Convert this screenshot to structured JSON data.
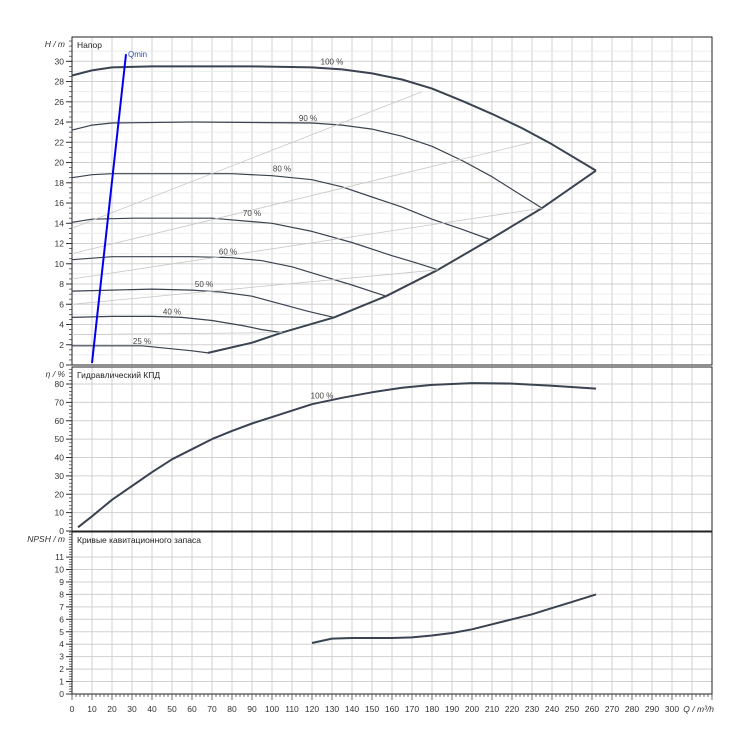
{
  "chart_data": [
    {
      "type": "line",
      "title": "Напор",
      "ylabel": "H / m",
      "xlabel": "Q / m³/h",
      "xlim": [
        0,
        320
      ],
      "ylim": [
        0,
        32
      ],
      "x_ticks": [
        0,
        10,
        20,
        30,
        40,
        50,
        60,
        70,
        80,
        90,
        100,
        110,
        120,
        130,
        140,
        150,
        160,
        170,
        180,
        190,
        200,
        210,
        220,
        230,
        240,
        250,
        260,
        270,
        280,
        290,
        300
      ],
      "y_ticks": [
        0,
        2,
        4,
        6,
        8,
        10,
        12,
        14,
        16,
        18,
        20,
        22,
        24,
        26,
        28,
        30
      ],
      "grid": true,
      "series": [
        {
          "name": "100 %",
          "points": [
            [
              0,
              28.6
            ],
            [
              10,
              29.1
            ],
            [
              20,
              29.4
            ],
            [
              40,
              29.5
            ],
            [
              60,
              29.5
            ],
            [
              90,
              29.5
            ],
            [
              120,
              29.4
            ],
            [
              135,
              29.2
            ],
            [
              150,
              28.8
            ],
            [
              165,
              28.2
            ],
            [
              180,
              27.3
            ],
            [
              195,
              26.1
            ],
            [
              210,
              24.8
            ],
            [
              225,
              23.4
            ],
            [
              240,
              21.8
            ],
            [
              262,
              19.2
            ]
          ]
        },
        {
          "name": "90 %",
          "points": [
            [
              0,
              23.2
            ],
            [
              10,
              23.7
            ],
            [
              20,
              23.9
            ],
            [
              60,
              24.0
            ],
            [
              120,
              23.9
            ],
            [
              135,
              23.7
            ],
            [
              150,
              23.3
            ],
            [
              165,
              22.6
            ],
            [
              180,
              21.6
            ],
            [
              195,
              20.2
            ],
            [
              210,
              18.6
            ],
            [
              222,
              17.1
            ],
            [
              235,
              15.5
            ]
          ]
        },
        {
          "name": "80 %",
          "points": [
            [
              0,
              18.5
            ],
            [
              10,
              18.8
            ],
            [
              20,
              18.9
            ],
            [
              80,
              18.9
            ],
            [
              100,
              18.7
            ],
            [
              120,
              18.3
            ],
            [
              135,
              17.6
            ],
            [
              150,
              16.6
            ],
            [
              165,
              15.6
            ],
            [
              180,
              14.4
            ],
            [
              195,
              13.4
            ],
            [
              209,
              12.4
            ]
          ]
        },
        {
          "name": "70 %",
          "points": [
            [
              0,
              14.1
            ],
            [
              10,
              14.4
            ],
            [
              30,
              14.5
            ],
            [
              70,
              14.5
            ],
            [
              100,
              14.0
            ],
            [
              120,
              13.2
            ],
            [
              140,
              12.1
            ],
            [
              160,
              10.8
            ],
            [
              172,
              10.1
            ],
            [
              183,
              9.4
            ]
          ]
        },
        {
          "name": "60 %",
          "points": [
            [
              0,
              10.4
            ],
            [
              20,
              10.7
            ],
            [
              60,
              10.7
            ],
            [
              80,
              10.6
            ],
            [
              95,
              10.3
            ],
            [
              110,
              9.7
            ],
            [
              125,
              8.8
            ],
            [
              140,
              7.9
            ],
            [
              157,
              6.8
            ]
          ]
        },
        {
          "name": "50 %",
          "points": [
            [
              0,
              7.3
            ],
            [
              20,
              7.4
            ],
            [
              40,
              7.5
            ],
            [
              60,
              7.4
            ],
            [
              75,
              7.2
            ],
            [
              90,
              6.8
            ],
            [
              105,
              6.0
            ],
            [
              118,
              5.3
            ],
            [
              131,
              4.7
            ]
          ]
        },
        {
          "name": "40 %",
          "points": [
            [
              0,
              4.7
            ],
            [
              20,
              4.8
            ],
            [
              40,
              4.8
            ],
            [
              55,
              4.7
            ],
            [
              70,
              4.4
            ],
            [
              85,
              3.9
            ],
            [
              95,
              3.5
            ],
            [
              105,
              3.2
            ]
          ]
        },
        {
          "name": "25 %",
          "points": [
            [
              0,
              1.9
            ],
            [
              20,
              1.9
            ],
            [
              35,
              1.9
            ],
            [
              50,
              1.6
            ],
            [
              60,
              1.4
            ],
            [
              68,
              1.2
            ]
          ]
        },
        {
          "name": "",
          "role": "limit",
          "points": [
            [
              68,
              1.2
            ],
            [
              90,
              2.2
            ],
            [
              105,
              3.2
            ],
            [
              131,
              4.7
            ],
            [
              157,
              6.8
            ],
            [
              183,
              9.4
            ],
            [
              209,
              12.4
            ],
            [
              235,
              15.5
            ],
            [
              262,
              19.2
            ]
          ]
        },
        {
          "name": "",
          "role": "iso-efficiency",
          "points": [
            [
              0,
              13.5
            ],
            [
              175,
              27.0
            ]
          ]
        },
        {
          "name": "",
          "role": "iso-efficiency",
          "points": [
            [
              0,
              11.0
            ],
            [
              230,
              22.0
            ]
          ]
        },
        {
          "name": "",
          "role": "iso-efficiency",
          "points": [
            [
              0,
              8.5
            ],
            [
              235,
              15.5
            ]
          ]
        },
        {
          "name": "",
          "role": "iso-efficiency",
          "points": [
            [
              0,
              6.0
            ],
            [
              183,
              9.4
            ]
          ]
        },
        {
          "name": "",
          "role": "iso-efficiency",
          "points": [
            [
              0,
              3.0
            ],
            [
              105,
              3.2
            ]
          ]
        },
        {
          "name": "Qmin",
          "role": "qmin",
          "color": "#0000ee",
          "points": [
            [
              10,
              0.2
            ],
            [
              27,
              30.7
            ]
          ]
        }
      ]
    },
    {
      "type": "line",
      "title": "Гидравлический КПД",
      "ylabel": "η / %",
      "xlim": [
        0,
        320
      ],
      "ylim": [
        0,
        85
      ],
      "y_ticks": [
        0,
        10,
        20,
        30,
        40,
        50,
        60,
        70,
        80
      ],
      "grid": true,
      "series": [
        {
          "name": "100 %",
          "points": [
            [
              3,
              2
            ],
            [
              10,
              8
            ],
            [
              20,
              17
            ],
            [
              30,
              24.5
            ],
            [
              40,
              32
            ],
            [
              50,
              39
            ],
            [
              60,
              44.5
            ],
            [
              70,
              50
            ],
            [
              80,
              54.5
            ],
            [
              90,
              58.5
            ],
            [
              100,
              62
            ],
            [
              120,
              69
            ],
            [
              135,
              72.5
            ],
            [
              150,
              75.5
            ],
            [
              165,
              78
            ],
            [
              180,
              79.5
            ],
            [
              200,
              80.5
            ],
            [
              220,
              80.2
            ],
            [
              240,
              79
            ],
            [
              262,
              77.5
            ]
          ]
        }
      ]
    },
    {
      "type": "line",
      "title": "Кривые кавитационного запаса",
      "ylabel": "NPSH / m",
      "xlabel": "Q / m³/h",
      "xlim": [
        0,
        320
      ],
      "ylim": [
        0,
        12
      ],
      "y_ticks": [
        0,
        1,
        2,
        3,
        4,
        5,
        6,
        7,
        8,
        9,
        10,
        11
      ],
      "grid": true,
      "series": [
        {
          "name": "",
          "points": [
            [
              120,
              4.1
            ],
            [
              130,
              4.45
            ],
            [
              140,
              4.5
            ],
            [
              160,
              4.5
            ],
            [
              170,
              4.55
            ],
            [
              180,
              4.7
            ],
            [
              190,
              4.9
            ],
            [
              200,
              5.2
            ],
            [
              210,
              5.6
            ],
            [
              220,
              6.0
            ],
            [
              230,
              6.4
            ],
            [
              240,
              6.9
            ],
            [
              250,
              7.4
            ],
            [
              262,
              8.0
            ]
          ]
        }
      ]
    }
  ],
  "colors": {
    "curve": "#3a4350",
    "qmin": "#0000ee",
    "iso": "#c8c8c8",
    "grid": "#d0d0d0"
  }
}
